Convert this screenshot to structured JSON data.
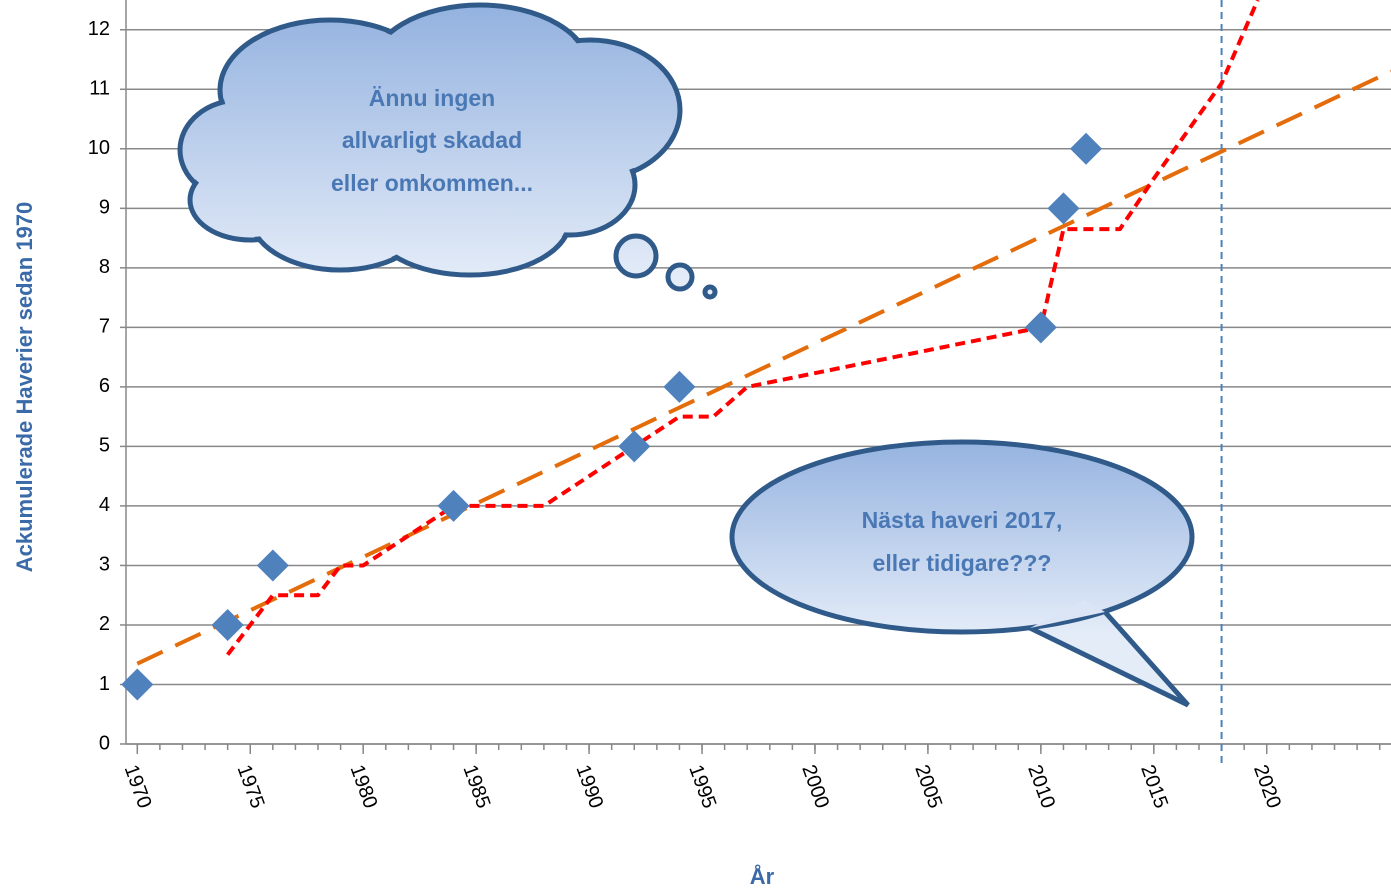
{
  "chart_data": {
    "type": "scatter",
    "y_label": "Ackumulerade Haverier sedan 1970",
    "x_label": "År",
    "xlim": [
      1969.5,
      2025.5
    ],
    "ylim": [
      0,
      12.5
    ],
    "xticks": [
      1970,
      1975,
      1980,
      1985,
      1990,
      1995,
      2000,
      2005,
      2010,
      2015,
      2020
    ],
    "x_minor_step": 1,
    "yticks": [
      0,
      1,
      2,
      3,
      4,
      5,
      6,
      7,
      8,
      9,
      10,
      11,
      12
    ],
    "grid": true,
    "series": [
      {
        "type": "scatter",
        "color": "#4f81bd",
        "x": [
          1970,
          1974,
          1976,
          1984,
          1992,
          1994,
          2010,
          2011,
          2012
        ],
        "values": [
          1,
          2,
          3,
          4,
          5,
          6,
          7,
          9,
          10
        ]
      },
      {
        "type": "line",
        "color": "#e46c0a",
        "dash": "28 14",
        "width": 4,
        "x": [
          1970,
          2025.5
        ],
        "values": [
          1.35,
          11.3
        ]
      },
      {
        "type": "line",
        "color": "#ff0000",
        "dash": "10 6",
        "width": 4,
        "x": [
          1974,
          1976,
          1978,
          1979,
          1980,
          1984,
          1988,
          1992,
          1994,
          1995.5,
          1997,
          2010,
          2011,
          2013.5,
          2015,
          2018,
          2019.6
        ],
        "values": [
          1.5,
          2.5,
          2.5,
          3,
          3,
          4,
          4,
          5,
          5.5,
          5.5,
          6,
          7,
          8.65,
          8.65,
          9.5,
          11.1,
          12.5
        ]
      }
    ],
    "vline": {
      "x": 2018,
      "color": "#4f81bd"
    },
    "annotations": [
      {
        "lines": [
          "Ännu ingen",
          "allvarligt skadad",
          "eller omkommen..."
        ]
      },
      {
        "lines": [
          "Nästa haveri 2017,",
          "eller tidigare???"
        ]
      }
    ]
  }
}
